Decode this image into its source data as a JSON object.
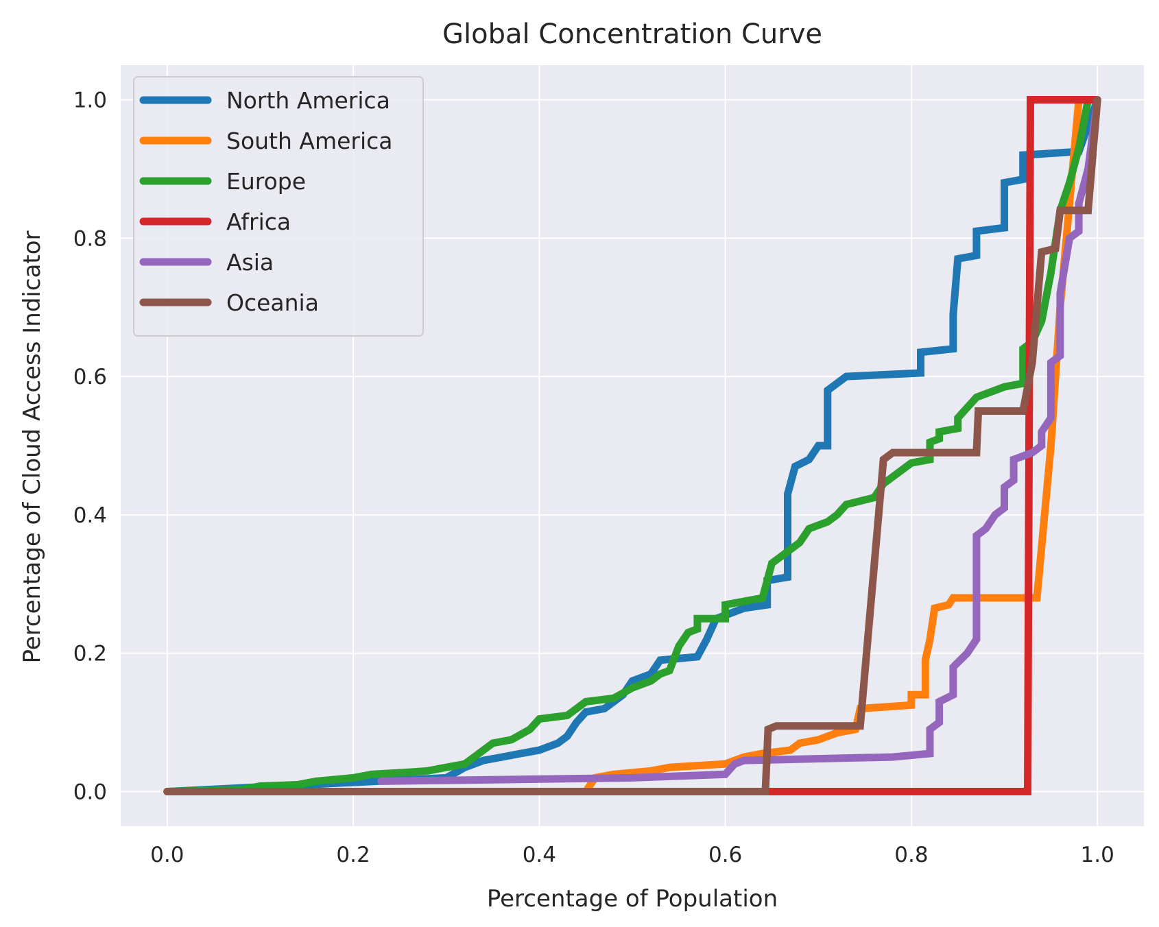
{
  "chart_data": {
    "type": "line",
    "title": "Global Concentration Curve",
    "xlabel": "Percentage of Population",
    "ylabel": "Percentage of Cloud Access Indicator",
    "xlim": [
      -0.05,
      1.05
    ],
    "ylim": [
      -0.05,
      1.05
    ],
    "xticks": [
      0.0,
      0.2,
      0.4,
      0.6,
      0.8,
      1.0
    ],
    "yticks": [
      0.0,
      0.2,
      0.4,
      0.6,
      0.8,
      1.0
    ],
    "xtick_labels": [
      "0.0",
      "0.2",
      "0.4",
      "0.6",
      "0.8",
      "1.0"
    ],
    "ytick_labels": [
      "0.0",
      "0.2",
      "0.4",
      "0.6",
      "0.8",
      "1.0"
    ],
    "grid": true,
    "legend_position": "top-left",
    "background": "#eaeaf2",
    "series": [
      {
        "name": "North America",
        "color": "#1f77b4",
        "points": [
          [
            0,
            0
          ],
          [
            0.3,
            0.02
          ],
          [
            0.32,
            0.035
          ],
          [
            0.34,
            0.045
          ],
          [
            0.36,
            0.05
          ],
          [
            0.38,
            0.055
          ],
          [
            0.4,
            0.06
          ],
          [
            0.42,
            0.07
          ],
          [
            0.43,
            0.08
          ],
          [
            0.44,
            0.1
          ],
          [
            0.45,
            0.115
          ],
          [
            0.47,
            0.12
          ],
          [
            0.48,
            0.13
          ],
          [
            0.49,
            0.14
          ],
          [
            0.5,
            0.16
          ],
          [
            0.52,
            0.17
          ],
          [
            0.53,
            0.19
          ],
          [
            0.57,
            0.195
          ],
          [
            0.58,
            0.22
          ],
          [
            0.59,
            0.25
          ],
          [
            0.61,
            0.26
          ],
          [
            0.62,
            0.265
          ],
          [
            0.645,
            0.27
          ],
          [
            0.645,
            0.305
          ],
          [
            0.667,
            0.31
          ],
          [
            0.667,
            0.43
          ],
          [
            0.675,
            0.47
          ],
          [
            0.69,
            0.48
          ],
          [
            0.7,
            0.5
          ],
          [
            0.71,
            0.5
          ],
          [
            0.71,
            0.58
          ],
          [
            0.72,
            0.59
          ],
          [
            0.73,
            0.6
          ],
          [
            0.81,
            0.605
          ],
          [
            0.81,
            0.635
          ],
          [
            0.845,
            0.64
          ],
          [
            0.845,
            0.69
          ],
          [
            0.85,
            0.77
          ],
          [
            0.87,
            0.775
          ],
          [
            0.87,
            0.81
          ],
          [
            0.9,
            0.815
          ],
          [
            0.9,
            0.88
          ],
          [
            0.92,
            0.885
          ],
          [
            0.92,
            0.92
          ],
          [
            0.98,
            0.925
          ],
          [
            1.0,
            1.0
          ]
        ]
      },
      {
        "name": "South America",
        "color": "#ff7f0e",
        "points": [
          [
            0,
            0
          ],
          [
            0.45,
            0.0
          ],
          [
            0.46,
            0.02
          ],
          [
            0.48,
            0.025
          ],
          [
            0.52,
            0.03
          ],
          [
            0.54,
            0.035
          ],
          [
            0.6,
            0.04
          ],
          [
            0.62,
            0.05
          ],
          [
            0.64,
            0.055
          ],
          [
            0.67,
            0.06
          ],
          [
            0.68,
            0.07
          ],
          [
            0.7,
            0.075
          ],
          [
            0.72,
            0.085
          ],
          [
            0.74,
            0.09
          ],
          [
            0.745,
            0.12
          ],
          [
            0.8,
            0.125
          ],
          [
            0.8,
            0.14
          ],
          [
            0.815,
            0.14
          ],
          [
            0.815,
            0.19
          ],
          [
            0.82,
            0.22
          ],
          [
            0.825,
            0.265
          ],
          [
            0.84,
            0.27
          ],
          [
            0.845,
            0.28
          ],
          [
            0.935,
            0.28
          ],
          [
            0.95,
            0.5
          ],
          [
            0.96,
            0.7
          ],
          [
            0.97,
            0.85
          ],
          [
            0.98,
            1.0
          ]
        ]
      },
      {
        "name": "Europe",
        "color": "#2ca02c",
        "points": [
          [
            0,
            0
          ],
          [
            0.08,
            0.003
          ],
          [
            0.1,
            0.008
          ],
          [
            0.14,
            0.01
          ],
          [
            0.16,
            0.015
          ],
          [
            0.2,
            0.02
          ],
          [
            0.22,
            0.025
          ],
          [
            0.26,
            0.028
          ],
          [
            0.28,
            0.03
          ],
          [
            0.3,
            0.035
          ],
          [
            0.32,
            0.04
          ],
          [
            0.33,
            0.05
          ],
          [
            0.34,
            0.06
          ],
          [
            0.35,
            0.07
          ],
          [
            0.37,
            0.075
          ],
          [
            0.39,
            0.09
          ],
          [
            0.4,
            0.105
          ],
          [
            0.43,
            0.11
          ],
          [
            0.44,
            0.12
          ],
          [
            0.45,
            0.13
          ],
          [
            0.48,
            0.135
          ],
          [
            0.5,
            0.15
          ],
          [
            0.52,
            0.16
          ],
          [
            0.53,
            0.17
          ],
          [
            0.54,
            0.175
          ],
          [
            0.55,
            0.21
          ],
          [
            0.56,
            0.23
          ],
          [
            0.57,
            0.235
          ],
          [
            0.57,
            0.25
          ],
          [
            0.6,
            0.25
          ],
          [
            0.6,
            0.27
          ],
          [
            0.64,
            0.28
          ],
          [
            0.65,
            0.33
          ],
          [
            0.66,
            0.34
          ],
          [
            0.68,
            0.36
          ],
          [
            0.69,
            0.38
          ],
          [
            0.71,
            0.39
          ],
          [
            0.72,
            0.4
          ],
          [
            0.73,
            0.415
          ],
          [
            0.76,
            0.425
          ],
          [
            0.77,
            0.445
          ],
          [
            0.79,
            0.465
          ],
          [
            0.8,
            0.475
          ],
          [
            0.82,
            0.48
          ],
          [
            0.82,
            0.505
          ],
          [
            0.83,
            0.51
          ],
          [
            0.83,
            0.52
          ],
          [
            0.85,
            0.525
          ],
          [
            0.85,
            0.54
          ],
          [
            0.86,
            0.555
          ],
          [
            0.87,
            0.57
          ],
          [
            0.89,
            0.58
          ],
          [
            0.9,
            0.585
          ],
          [
            0.92,
            0.59
          ],
          [
            0.92,
            0.64
          ],
          [
            0.93,
            0.65
          ],
          [
            0.94,
            0.68
          ],
          [
            0.95,
            0.75
          ],
          [
            0.96,
            0.84
          ],
          [
            0.97,
            0.88
          ],
          [
            0.98,
            0.93
          ],
          [
            0.99,
            1.0
          ]
        ]
      },
      {
        "name": "Africa",
        "color": "#d62728",
        "points": [
          [
            0,
            0
          ],
          [
            0.925,
            0
          ],
          [
            0.928,
            1.0
          ],
          [
            1.0,
            1.0
          ]
        ]
      },
      {
        "name": "Asia",
        "color": "#9467bd",
        "points": [
          [
            0.23,
            0.015
          ],
          [
            0.5,
            0.02
          ],
          [
            0.6,
            0.025
          ],
          [
            0.61,
            0.04
          ],
          [
            0.62,
            0.045
          ],
          [
            0.78,
            0.05
          ],
          [
            0.82,
            0.055
          ],
          [
            0.82,
            0.09
          ],
          [
            0.83,
            0.1
          ],
          [
            0.83,
            0.13
          ],
          [
            0.845,
            0.14
          ],
          [
            0.845,
            0.18
          ],
          [
            0.86,
            0.2
          ],
          [
            0.87,
            0.22
          ],
          [
            0.87,
            0.37
          ],
          [
            0.88,
            0.38
          ],
          [
            0.89,
            0.4
          ],
          [
            0.9,
            0.41
          ],
          [
            0.9,
            0.44
          ],
          [
            0.91,
            0.45
          ],
          [
            0.91,
            0.48
          ],
          [
            0.93,
            0.49
          ],
          [
            0.94,
            0.5
          ],
          [
            0.94,
            0.52
          ],
          [
            0.95,
            0.54
          ],
          [
            0.95,
            0.62
          ],
          [
            0.96,
            0.63
          ],
          [
            0.96,
            0.72
          ],
          [
            0.97,
            0.8
          ],
          [
            0.98,
            0.81
          ],
          [
            0.98,
            0.85
          ],
          [
            0.99,
            0.9
          ],
          [
            1.0,
            1.0
          ]
        ]
      },
      {
        "name": "Oceania",
        "color": "#8c564b",
        "points": [
          [
            0,
            0
          ],
          [
            0.643,
            0
          ],
          [
            0.646,
            0.09
          ],
          [
            0.655,
            0.095
          ],
          [
            0.745,
            0.095
          ],
          [
            0.77,
            0.48
          ],
          [
            0.78,
            0.49
          ],
          [
            0.87,
            0.49
          ],
          [
            0.872,
            0.55
          ],
          [
            0.92,
            0.55
          ],
          [
            0.93,
            0.62
          ],
          [
            0.94,
            0.78
          ],
          [
            0.955,
            0.785
          ],
          [
            0.96,
            0.84
          ],
          [
            0.99,
            0.84
          ],
          [
            1.0,
            1.0
          ]
        ]
      }
    ]
  }
}
